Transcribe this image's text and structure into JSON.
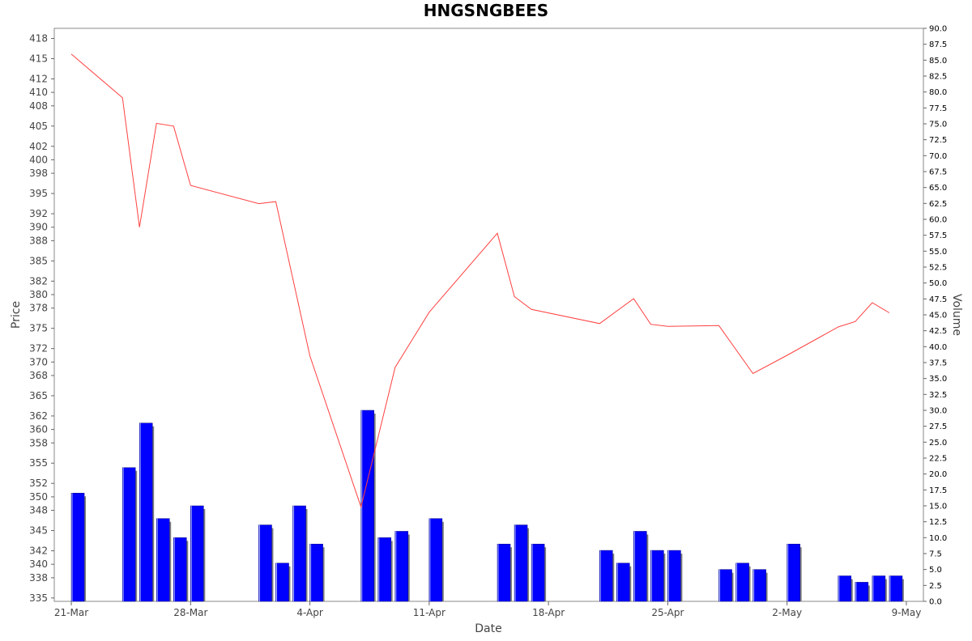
{
  "chart_data": {
    "type": "bar+line",
    "title": "HNGSNGBEES",
    "xlabel": "Date",
    "ylabel_left": "Price",
    "ylabel_right": "Volume",
    "x_tick_labels": [
      "21-Mar",
      "28-Mar",
      "4-Apr",
      "11-Apr",
      "18-Apr",
      "25-Apr",
      "2-May",
      "9-May"
    ],
    "x_tick_days": [
      0,
      7,
      14,
      21,
      28,
      35,
      42,
      49
    ],
    "x_range_days": [
      -1,
      50
    ],
    "price_ylim": [
      334.5,
      419.5
    ],
    "price_ticks": [
      335,
      338,
      340,
      342,
      345,
      348,
      350,
      352,
      355,
      358,
      360,
      362,
      365,
      368,
      370,
      372,
      375,
      378,
      380,
      382,
      385,
      388,
      390,
      392,
      395,
      398,
      400,
      402,
      405,
      408,
      410,
      412,
      415,
      418
    ],
    "volume_ylim": [
      0,
      90
    ],
    "volume_ticks": [
      "0.0",
      "2.5",
      "5.0",
      "7.5",
      "10.0",
      "12.5",
      "15.0",
      "17.5",
      "20.0",
      "22.5",
      "25.0",
      "27.5",
      "30.0",
      "32.5",
      "35.0",
      "37.5",
      "40.0",
      "42.5",
      "45.0",
      "47.5",
      "50.0",
      "52.5",
      "55.0",
      "57.5",
      "60.0",
      "62.5",
      "65.0",
      "67.5",
      "70.0",
      "72.5",
      "75.0",
      "77.5",
      "80.0",
      "82.5",
      "85.0",
      "87.5",
      "90.0"
    ],
    "series": [
      {
        "name": "Price",
        "type": "line",
        "color": "#ff4040",
        "points": [
          {
            "d": 0,
            "v": 415.7
          },
          {
            "d": 3,
            "v": 409.2
          },
          {
            "d": 4,
            "v": 390.0
          },
          {
            "d": 5,
            "v": 405.4
          },
          {
            "d": 6,
            "v": 405.0
          },
          {
            "d": 7,
            "v": 396.2
          },
          {
            "d": 11,
            "v": 393.5
          },
          {
            "d": 12,
            "v": 393.8
          },
          {
            "d": 14,
            "v": 370.9
          },
          {
            "d": 17,
            "v": 348.5
          },
          {
            "d": 19,
            "v": 369.2
          },
          {
            "d": 21,
            "v": 377.4
          },
          {
            "d": 25,
            "v": 389.1
          },
          {
            "d": 26,
            "v": 379.7
          },
          {
            "d": 27,
            "v": 377.8
          },
          {
            "d": 31,
            "v": 375.7
          },
          {
            "d": 33,
            "v": 379.4
          },
          {
            "d": 34,
            "v": 375.6
          },
          {
            "d": 35,
            "v": 375.3
          },
          {
            "d": 38,
            "v": 375.4
          },
          {
            "d": 40,
            "v": 368.3
          },
          {
            "d": 42,
            "v": 371.0
          },
          {
            "d": 45,
            "v": 375.2
          },
          {
            "d": 46,
            "v": 376.0
          },
          {
            "d": 47,
            "v": 378.8
          },
          {
            "d": 48,
            "v": 377.3
          }
        ]
      },
      {
        "name": "Volume",
        "type": "bar",
        "color": "#0000ff",
        "shadow_color": "#808080",
        "bars": [
          {
            "d": 0,
            "v": 17.0
          },
          {
            "d": 3,
            "v": 21.0
          },
          {
            "d": 4,
            "v": 28.0
          },
          {
            "d": 5,
            "v": 13.0
          },
          {
            "d": 6,
            "v": 10.0
          },
          {
            "d": 7,
            "v": 15.0
          },
          {
            "d": 11,
            "v": 12.0
          },
          {
            "d": 12,
            "v": 6.0
          },
          {
            "d": 13,
            "v": 15.0
          },
          {
            "d": 14,
            "v": 9.0
          },
          {
            "d": 17,
            "v": 30.0
          },
          {
            "d": 18,
            "v": 10.0
          },
          {
            "d": 19,
            "v": 11.0
          },
          {
            "d": 21,
            "v": 13.0
          },
          {
            "d": 25,
            "v": 9.0
          },
          {
            "d": 26,
            "v": 12.0
          },
          {
            "d": 27,
            "v": 9.0
          },
          {
            "d": 31,
            "v": 8.0
          },
          {
            "d": 32,
            "v": 6.0
          },
          {
            "d": 33,
            "v": 11.0
          },
          {
            "d": 34,
            "v": 8.0
          },
          {
            "d": 35,
            "v": 8.0
          },
          {
            "d": 38,
            "v": 5.0
          },
          {
            "d": 39,
            "v": 6.0
          },
          {
            "d": 40,
            "v": 5.0
          },
          {
            "d": 42,
            "v": 9.0
          },
          {
            "d": 45,
            "v": 4.0
          },
          {
            "d": 46,
            "v": 3.0
          },
          {
            "d": 47,
            "v": 4.0
          },
          {
            "d": 48,
            "v": 4.0
          }
        ]
      }
    ],
    "grid": false,
    "legend": "none"
  }
}
